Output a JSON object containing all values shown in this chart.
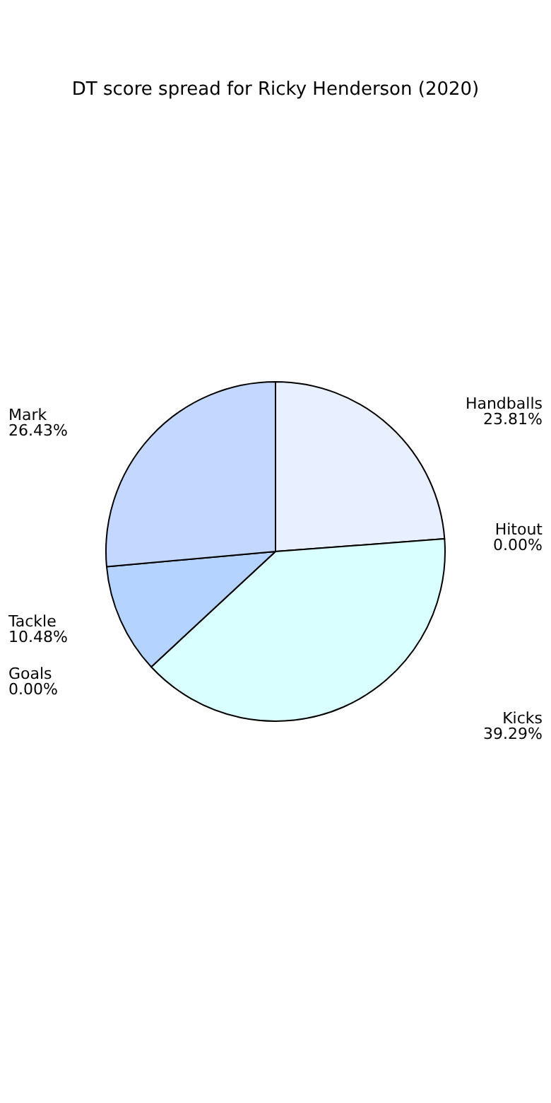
{
  "chart_data": {
    "type": "pie",
    "title": "DT score spread for Ricky Henderson (2020)",
    "categories": [
      "Handballs",
      "Hitout",
      "Kicks",
      "Goals",
      "Tackle",
      "Mark"
    ],
    "values": [
      23.81,
      0.0,
      39.29,
      0.0,
      10.48,
      26.43
    ],
    "value_labels": [
      "23.81%",
      "0.00%",
      "39.29%",
      "0.00%",
      "10.48%",
      "26.43%"
    ],
    "colors": [
      "#e8f0ff",
      "#ffffff",
      "#d9ffff",
      "#ffffff",
      "#b4d4ff",
      "#c4d8ff"
    ]
  }
}
